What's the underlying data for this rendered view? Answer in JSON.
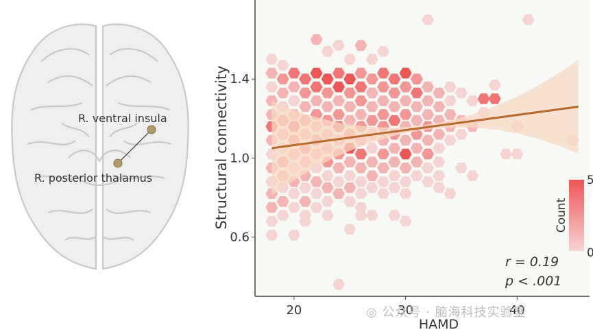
{
  "brain": {
    "label_insula": "R. ventral insula",
    "label_thalamus": "R. posterior thalamus"
  },
  "chart_data": {
    "type": "hexbin",
    "xlabel": "HAMD",
    "ylabel": "Structural connectivity",
    "xlim": [
      16.5,
      46.5
    ],
    "ylim": [
      0.3,
      1.8
    ],
    "xticks": [
      20,
      30,
      40
    ],
    "yticks": [
      0.6,
      1.0,
      1.4
    ],
    "grid": false,
    "fit_line": {
      "x": [
        18,
        45.5
      ],
      "y": [
        1.05,
        1.26
      ]
    },
    "annotation_r": "r = 0.19",
    "annotation_p": "p < .001",
    "colorbar": {
      "title": "Count",
      "min": 0,
      "max": 5,
      "min_label": "0",
      "max_label": "5",
      "low_color": "#f7d4d4",
      "high_color": "#ee5555"
    },
    "colors": {
      "fit_line": "#b86a2e",
      "ci_band": "#f7d9c4",
      "background": "#f7f9f5"
    },
    "bins": [
      {
        "x": 18,
        "y": 1.5,
        "c": 1
      },
      {
        "x": 19,
        "y": 1.47,
        "c": 1
      },
      {
        "x": 18,
        "y": 1.43,
        "c": 2
      },
      {
        "x": 18,
        "y": 1.36,
        "c": 1
      },
      {
        "x": 18,
        "y": 1.29,
        "c": 2
      },
      {
        "x": 18,
        "y": 1.22,
        "c": 2
      },
      {
        "x": 18,
        "y": 1.16,
        "c": 4
      },
      {
        "x": 18,
        "y": 1.09,
        "c": 2
      },
      {
        "x": 18,
        "y": 1.02,
        "c": 1
      },
      {
        "x": 18,
        "y": 0.95,
        "c": 2
      },
      {
        "x": 18,
        "y": 0.88,
        "c": 1
      },
      {
        "x": 18,
        "y": 0.82,
        "c": 2
      },
      {
        "x": 18,
        "y": 0.75,
        "c": 2
      },
      {
        "x": 18,
        "y": 0.68,
        "c": 1
      },
      {
        "x": 18,
        "y": 0.61,
        "c": 1
      },
      {
        "x": 19,
        "y": 1.4,
        "c": 3
      },
      {
        "x": 19,
        "y": 1.33,
        "c": 2
      },
      {
        "x": 19,
        "y": 1.26,
        "c": 1
      },
      {
        "x": 19,
        "y": 1.19,
        "c": 3
      },
      {
        "x": 19,
        "y": 1.12,
        "c": 2
      },
      {
        "x": 19,
        "y": 1.05,
        "c": 1
      },
      {
        "x": 19,
        "y": 0.98,
        "c": 3
      },
      {
        "x": 19,
        "y": 0.91,
        "c": 2
      },
      {
        "x": 19,
        "y": 0.85,
        "c": 1
      },
      {
        "x": 19,
        "y": 0.78,
        "c": 2
      },
      {
        "x": 19,
        "y": 0.71,
        "c": 1
      },
      {
        "x": 20,
        "y": 1.43,
        "c": 4
      },
      {
        "x": 20,
        "y": 1.36,
        "c": 2
      },
      {
        "x": 20,
        "y": 1.29,
        "c": 1
      },
      {
        "x": 20,
        "y": 1.22,
        "c": 2
      },
      {
        "x": 20,
        "y": 1.16,
        "c": 4
      },
      {
        "x": 20,
        "y": 1.09,
        "c": 3
      },
      {
        "x": 20,
        "y": 1.02,
        "c": 2
      },
      {
        "x": 20,
        "y": 0.95,
        "c": 1
      },
      {
        "x": 20,
        "y": 0.88,
        "c": 2
      },
      {
        "x": 20,
        "y": 0.82,
        "c": 1
      },
      {
        "x": 20,
        "y": 0.75,
        "c": 1
      },
      {
        "x": 20,
        "y": 0.61,
        "c": 1
      },
      {
        "x": 21,
        "y": 1.4,
        "c": 4
      },
      {
        "x": 21,
        "y": 1.33,
        "c": 3
      },
      {
        "x": 21,
        "y": 1.26,
        "c": 2
      },
      {
        "x": 21,
        "y": 1.19,
        "c": 3
      },
      {
        "x": 21,
        "y": 1.12,
        "c": 2
      },
      {
        "x": 21,
        "y": 1.05,
        "c": 3
      },
      {
        "x": 21,
        "y": 0.98,
        "c": 2
      },
      {
        "x": 21,
        "y": 0.91,
        "c": 2
      },
      {
        "x": 21,
        "y": 0.85,
        "c": 1
      },
      {
        "x": 21,
        "y": 0.78,
        "c": 2
      },
      {
        "x": 21,
        "y": 0.71,
        "c": 1
      },
      {
        "x": 22,
        "y": 1.43,
        "c": 5
      },
      {
        "x": 22,
        "y": 1.36,
        "c": 4
      },
      {
        "x": 22,
        "y": 1.29,
        "c": 2
      },
      {
        "x": 22,
        "y": 1.22,
        "c": 3
      },
      {
        "x": 22,
        "y": 1.16,
        "c": 2
      },
      {
        "x": 22,
        "y": 1.09,
        "c": 3
      },
      {
        "x": 22,
        "y": 1.02,
        "c": 2
      },
      {
        "x": 22,
        "y": 0.95,
        "c": 1
      },
      {
        "x": 22,
        "y": 0.88,
        "c": 2
      },
      {
        "x": 22,
        "y": 0.82,
        "c": 1
      },
      {
        "x": 22,
        "y": 0.75,
        "c": 1
      },
      {
        "x": 22,
        "y": 1.6,
        "c": 2
      },
      {
        "x": 23,
        "y": 1.4,
        "c": 5
      },
      {
        "x": 23,
        "y": 1.33,
        "c": 3
      },
      {
        "x": 23,
        "y": 1.26,
        "c": 2
      },
      {
        "x": 23,
        "y": 1.19,
        "c": 3
      },
      {
        "x": 23,
        "y": 1.12,
        "c": 2
      },
      {
        "x": 23,
        "y": 1.05,
        "c": 2
      },
      {
        "x": 23,
        "y": 0.98,
        "c": 3
      },
      {
        "x": 23,
        "y": 0.91,
        "c": 1
      },
      {
        "x": 23,
        "y": 0.85,
        "c": 2
      },
      {
        "x": 23,
        "y": 0.78,
        "c": 1
      },
      {
        "x": 23,
        "y": 0.71,
        "c": 1
      },
      {
        "x": 23,
        "y": 1.54,
        "c": 1
      },
      {
        "x": 24,
        "y": 1.43,
        "c": 4
      },
      {
        "x": 24,
        "y": 1.36,
        "c": 5
      },
      {
        "x": 24,
        "y": 1.29,
        "c": 2
      },
      {
        "x": 24,
        "y": 1.22,
        "c": 3
      },
      {
        "x": 24,
        "y": 1.16,
        "c": 4
      },
      {
        "x": 24,
        "y": 1.09,
        "c": 2
      },
      {
        "x": 24,
        "y": 1.02,
        "c": 3
      },
      {
        "x": 24,
        "y": 0.95,
        "c": 2
      },
      {
        "x": 24,
        "y": 0.88,
        "c": 1
      },
      {
        "x": 24,
        "y": 0.82,
        "c": 2
      },
      {
        "x": 24,
        "y": 1.57,
        "c": 1
      },
      {
        "x": 24,
        "y": 0.36,
        "c": 1
      },
      {
        "x": 25,
        "y": 1.4,
        "c": 5
      },
      {
        "x": 25,
        "y": 1.33,
        "c": 3
      },
      {
        "x": 25,
        "y": 1.26,
        "c": 2
      },
      {
        "x": 25,
        "y": 1.19,
        "c": 2
      },
      {
        "x": 25,
        "y": 1.12,
        "c": 3
      },
      {
        "x": 25,
        "y": 1.05,
        "c": 5
      },
      {
        "x": 25,
        "y": 0.98,
        "c": 2
      },
      {
        "x": 25,
        "y": 0.91,
        "c": 1
      },
      {
        "x": 25,
        "y": 0.85,
        "c": 2
      },
      {
        "x": 25,
        "y": 0.78,
        "c": 1
      },
      {
        "x": 25,
        "y": 1.5,
        "c": 1
      },
      {
        "x": 26,
        "y": 1.43,
        "c": 3
      },
      {
        "x": 26,
        "y": 1.36,
        "c": 4
      },
      {
        "x": 26,
        "y": 1.29,
        "c": 3
      },
      {
        "x": 26,
        "y": 1.22,
        "c": 2
      },
      {
        "x": 26,
        "y": 1.16,
        "c": 3
      },
      {
        "x": 26,
        "y": 1.09,
        "c": 2
      },
      {
        "x": 26,
        "y": 1.02,
        "c": 4
      },
      {
        "x": 26,
        "y": 0.95,
        "c": 2
      },
      {
        "x": 26,
        "y": 0.88,
        "c": 1
      },
      {
        "x": 26,
        "y": 0.82,
        "c": 1
      },
      {
        "x": 26,
        "y": 0.75,
        "c": 1
      },
      {
        "x": 26,
        "y": 1.57,
        "c": 2
      },
      {
        "x": 27,
        "y": 1.4,
        "c": 3
      },
      {
        "x": 27,
        "y": 1.33,
        "c": 2
      },
      {
        "x": 27,
        "y": 1.26,
        "c": 2
      },
      {
        "x": 27,
        "y": 1.19,
        "c": 3
      },
      {
        "x": 27,
        "y": 1.12,
        "c": 2
      },
      {
        "x": 27,
        "y": 1.05,
        "c": 1
      },
      {
        "x": 27,
        "y": 0.98,
        "c": 2
      },
      {
        "x": 27,
        "y": 0.91,
        "c": 2
      },
      {
        "x": 27,
        "y": 0.85,
        "c": 1
      },
      {
        "x": 27,
        "y": 0.71,
        "c": 1
      },
      {
        "x": 27,
        "y": 1.5,
        "c": 1
      },
      {
        "x": 28,
        "y": 1.43,
        "c": 4
      },
      {
        "x": 28,
        "y": 1.36,
        "c": 3
      },
      {
        "x": 28,
        "y": 1.29,
        "c": 2
      },
      {
        "x": 28,
        "y": 1.22,
        "c": 3
      },
      {
        "x": 28,
        "y": 1.16,
        "c": 3
      },
      {
        "x": 28,
        "y": 1.09,
        "c": 2
      },
      {
        "x": 28,
        "y": 1.02,
        "c": 3
      },
      {
        "x": 28,
        "y": 0.95,
        "c": 2
      },
      {
        "x": 28,
        "y": 0.88,
        "c": 1
      },
      {
        "x": 28,
        "y": 0.82,
        "c": 1
      },
      {
        "x": 28,
        "y": 1.54,
        "c": 1
      },
      {
        "x": 29,
        "y": 1.4,
        "c": 4
      },
      {
        "x": 29,
        "y": 1.33,
        "c": 3
      },
      {
        "x": 29,
        "y": 1.26,
        "c": 2
      },
      {
        "x": 29,
        "y": 1.19,
        "c": 4
      },
      {
        "x": 29,
        "y": 1.12,
        "c": 3
      },
      {
        "x": 29,
        "y": 1.05,
        "c": 2
      },
      {
        "x": 29,
        "y": 0.98,
        "c": 2
      },
      {
        "x": 29,
        "y": 0.91,
        "c": 1
      },
      {
        "x": 29,
        "y": 0.85,
        "c": 1
      },
      {
        "x": 29,
        "y": 0.71,
        "c": 1
      },
      {
        "x": 30,
        "y": 1.43,
        "c": 5
      },
      {
        "x": 30,
        "y": 1.36,
        "c": 3
      },
      {
        "x": 30,
        "y": 1.29,
        "c": 2
      },
      {
        "x": 30,
        "y": 1.22,
        "c": 3
      },
      {
        "x": 30,
        "y": 1.16,
        "c": 2
      },
      {
        "x": 30,
        "y": 1.09,
        "c": 2
      },
      {
        "x": 30,
        "y": 1.02,
        "c": 5
      },
      {
        "x": 30,
        "y": 0.95,
        "c": 2
      },
      {
        "x": 30,
        "y": 0.88,
        "c": 1
      },
      {
        "x": 30,
        "y": 0.82,
        "c": 1
      },
      {
        "x": 30,
        "y": 0.68,
        "c": 1
      },
      {
        "x": 31,
        "y": 1.4,
        "c": 3
      },
      {
        "x": 31,
        "y": 1.33,
        "c": 4
      },
      {
        "x": 31,
        "y": 1.26,
        "c": 2
      },
      {
        "x": 31,
        "y": 1.19,
        "c": 2
      },
      {
        "x": 31,
        "y": 1.12,
        "c": 3
      },
      {
        "x": 31,
        "y": 1.05,
        "c": 2
      },
      {
        "x": 31,
        "y": 0.98,
        "c": 2
      },
      {
        "x": 31,
        "y": 0.91,
        "c": 1
      },
      {
        "x": 32,
        "y": 1.36,
        "c": 2
      },
      {
        "x": 32,
        "y": 1.29,
        "c": 2
      },
      {
        "x": 32,
        "y": 1.22,
        "c": 2
      },
      {
        "x": 32,
        "y": 1.16,
        "c": 3
      },
      {
        "x": 32,
        "y": 1.09,
        "c": 2
      },
      {
        "x": 32,
        "y": 1.02,
        "c": 3
      },
      {
        "x": 32,
        "y": 0.95,
        "c": 1
      },
      {
        "x": 32,
        "y": 0.88,
        "c": 1
      },
      {
        "x": 32,
        "y": 1.7,
        "c": 1
      },
      {
        "x": 33,
        "y": 1.33,
        "c": 2
      },
      {
        "x": 33,
        "y": 1.26,
        "c": 2
      },
      {
        "x": 33,
        "y": 1.19,
        "c": 2
      },
      {
        "x": 33,
        "y": 1.12,
        "c": 2
      },
      {
        "x": 33,
        "y": 1.05,
        "c": 1
      },
      {
        "x": 33,
        "y": 0.98,
        "c": 1
      },
      {
        "x": 33,
        "y": 0.91,
        "c": 1
      },
      {
        "x": 33,
        "y": 0.85,
        "c": 1
      },
      {
        "x": 34,
        "y": 1.36,
        "c": 1
      },
      {
        "x": 34,
        "y": 1.29,
        "c": 1
      },
      {
        "x": 34,
        "y": 1.22,
        "c": 2
      },
      {
        "x": 34,
        "y": 1.16,
        "c": 2
      },
      {
        "x": 34,
        "y": 1.09,
        "c": 1
      },
      {
        "x": 34,
        "y": 0.82,
        "c": 1
      },
      {
        "x": 35,
        "y": 1.33,
        "c": 1
      },
      {
        "x": 35,
        "y": 1.19,
        "c": 2
      },
      {
        "x": 35,
        "y": 1.12,
        "c": 1
      },
      {
        "x": 35,
        "y": 0.95,
        "c": 1
      },
      {
        "x": 36,
        "y": 1.16,
        "c": 2
      },
      {
        "x": 36,
        "y": 1.29,
        "c": 1
      },
      {
        "x": 36,
        "y": 0.91,
        "c": 1
      },
      {
        "x": 37,
        "y": 1.3,
        "c": 4
      },
      {
        "x": 38,
        "y": 1.3,
        "c": 4
      },
      {
        "x": 37,
        "y": 1.23,
        "c": 1
      },
      {
        "x": 38,
        "y": 1.37,
        "c": 1
      },
      {
        "x": 40,
        "y": 1.16,
        "c": 1
      },
      {
        "x": 40,
        "y": 1.02,
        "c": 1
      },
      {
        "x": 39,
        "y": 1.02,
        "c": 1
      },
      {
        "x": 41,
        "y": 1.7,
        "c": 1
      },
      {
        "x": 45,
        "y": 1.09,
        "c": 1
      },
      {
        "x": 21,
        "y": 0.68,
        "c": 1
      },
      {
        "x": 26,
        "y": 0.71,
        "c": 1
      },
      {
        "x": 25,
        "y": 0.64,
        "c": 1
      }
    ]
  }
}
